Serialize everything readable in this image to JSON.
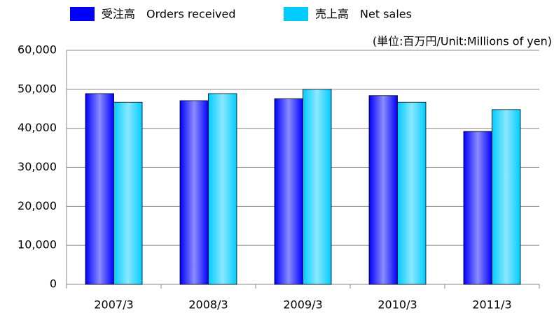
{
  "chart_data": {
    "type": "bar",
    "annotation": "(単位:百万円/Unit:Millions of yen)",
    "categories": [
      "2007/3",
      "2008/3",
      "2009/3",
      "2010/3",
      "2011/3"
    ],
    "series": [
      {
        "name": "受注高　Orders received",
        "color": "#0000ff",
        "values": [
          48900,
          47100,
          47600,
          48400,
          39200
        ]
      },
      {
        "name": "売上高　Net sales",
        "color": "#00ccff",
        "values": [
          46700,
          48900,
          50000,
          46700,
          44800
        ]
      }
    ],
    "ylim": [
      0,
      60000
    ],
    "yticks": [
      0,
      {
        "value": 10000,
        "label": "10,000"
      },
      {
        "value": 20000,
        "label": "20,000"
      },
      {
        "value": 30000,
        "label": "30,000"
      },
      {
        "value": 40000,
        "label": "40,000"
      },
      {
        "value": 50000,
        "label": "50,000"
      },
      {
        "value": 60000,
        "label": "60,000"
      }
    ],
    "grid": true
  }
}
